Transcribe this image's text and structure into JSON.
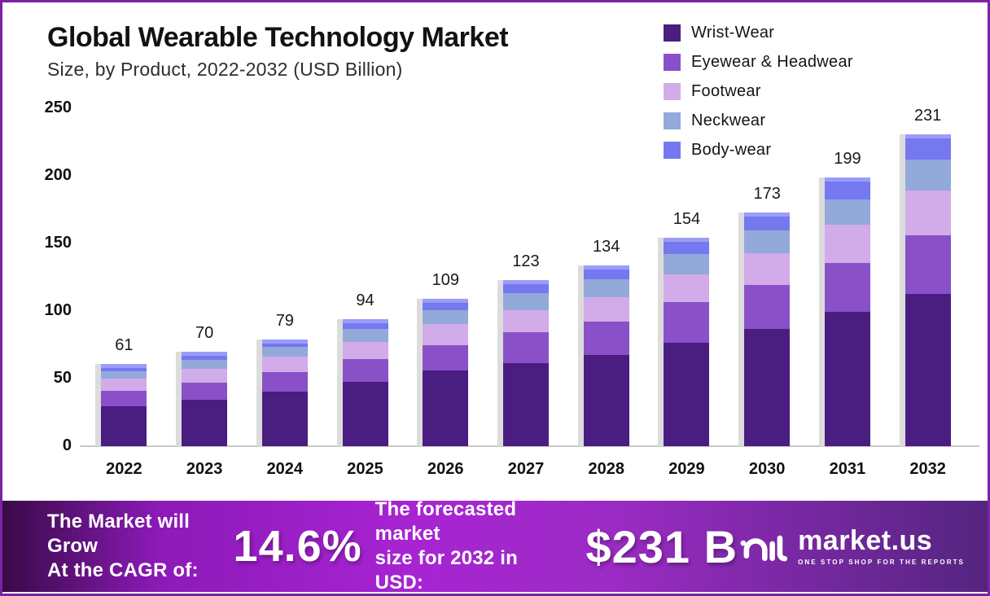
{
  "frame": {
    "border_color": "#7c22a6",
    "background": "#ffffff"
  },
  "header": {
    "title": "Global Wearable Technology Market",
    "subtitle": "Size, by Product, 2022-2032 (USD Billion)"
  },
  "chart_data": {
    "type": "bar",
    "stacked": true,
    "title": "Global Wearable Technology Market Size, by Product, 2022-2032 (USD Billion)",
    "xlabel": "",
    "ylabel": "",
    "ylim": [
      0,
      250
    ],
    "yticks": [
      0,
      50,
      100,
      150,
      200,
      250
    ],
    "grid": false,
    "legend_position": "top-right",
    "categories": [
      "2022",
      "2023",
      "2024",
      "2025",
      "2026",
      "2027",
      "2028",
      "2029",
      "2030",
      "2031",
      "2032"
    ],
    "series": [
      {
        "name": "Wrist-Wear",
        "color": "#4a1d80",
        "values": [
          29.5,
          34.6,
          40.2,
          47.3,
          56.1,
          61.3,
          67.5,
          76.7,
          86.5,
          99.2,
          112.7
        ]
      },
      {
        "name": "Eyewear & Headwear",
        "color": "#8a50c8",
        "values": [
          11.3,
          12.6,
          14.6,
          17.1,
          18.9,
          22.9,
          24.6,
          29.7,
          32.6,
          36.3,
          43.4
        ]
      },
      {
        "name": "Footwear",
        "color": "#d2abe9",
        "values": [
          9.1,
          10.2,
          11.7,
          12.8,
          15.1,
          16.3,
          18.4,
          20.9,
          23.4,
          28.1,
          33.1
        ]
      },
      {
        "name": "Neckwear",
        "color": "#92a9da",
        "values": [
          5.5,
          6.5,
          6.9,
          9.5,
          10.8,
          12.9,
          12.9,
          15.0,
          17.3,
          19.1,
          23.1
        ]
      },
      {
        "name": "Body-wear",
        "color": "#7678f0",
        "highlight_color": "#9b9cf7",
        "values": [
          5.6,
          6.1,
          5.6,
          7.3,
          8.1,
          9.6,
          10.6,
          11.7,
          13.2,
          16.3,
          18.7
        ]
      }
    ],
    "totals": [
      61,
      70,
      79,
      94,
      109,
      123,
      134,
      154,
      173,
      199,
      231
    ],
    "axis_color": "#c9c9c9",
    "bar_shadow_color": "#dcdcdc"
  },
  "banner": {
    "gradient": [
      "#380a47",
      "#8d1ab8",
      "#a824d3",
      "#9b2bc4",
      "#53257f"
    ],
    "left_line1": "The Market will Grow",
    "left_line2": "At the CAGR of:",
    "cagr_value": "14.6%",
    "mid_line1": "The forecasted market",
    "mid_line2": "size for 2032 in USD:",
    "market_value": "$231 B",
    "logo": {
      "name": "market.us",
      "tagline": "ONE STOP SHOP FOR THE REPORTS"
    }
  }
}
